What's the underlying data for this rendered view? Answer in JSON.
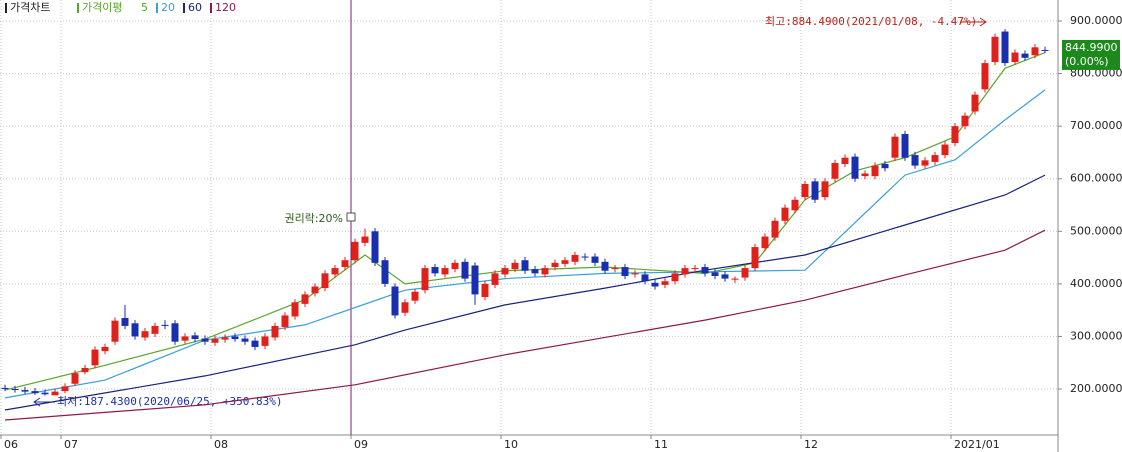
{
  "chart_data": {
    "type": "candlestick",
    "legend": {
      "chart": "가격차트",
      "ma": "가격이평"
    },
    "open": [
      202,
      200,
      198,
      196,
      193,
      188,
      196,
      210,
      232,
      245,
      272,
      290,
      335,
      325,
      298,
      305,
      322,
      325,
      292,
      302,
      296,
      288,
      294,
      300,
      296,
      292,
      282,
      298,
      318,
      338,
      362,
      382,
      392,
      418,
      432,
      445,
      478,
      500,
      445,
      395,
      345,
      368,
      388,
      432,
      418,
      428,
      442,
      435,
      375,
      398,
      418,
      428,
      445,
      428,
      418,
      432,
      438,
      442,
      452,
      452,
      442,
      428,
      432,
      418,
      418,
      402,
      398,
      405,
      418,
      428,
      432,
      422,
      418,
      408,
      412,
      430,
      468,
      488,
      520,
      540,
      565,
      595,
      565,
      600,
      628,
      642,
      605,
      605,
      628,
      640,
      685,
      645,
      625,
      632,
      645,
      668,
      700,
      728,
      770,
      822,
      880,
      822,
      838,
      835,
      845
    ],
    "high": [
      208,
      206,
      204,
      202,
      199,
      201,
      211,
      236,
      246,
      281,
      286,
      336,
      360,
      331,
      316,
      326,
      331,
      331,
      306,
      308,
      302,
      301,
      304,
      306,
      302,
      298,
      306,
      326,
      346,
      371,
      386,
      401,
      426,
      436,
      451,
      486,
      505,
      506,
      451,
      401,
      371,
      391,
      436,
      438,
      436,
      446,
      448,
      441,
      406,
      426,
      436,
      446,
      451,
      434,
      436,
      446,
      451,
      461,
      458,
      458,
      448,
      436,
      438,
      426,
      424,
      408,
      411,
      426,
      436,
      436,
      438,
      428,
      424,
      414,
      436,
      476,
      496,
      526,
      551,
      566,
      596,
      601,
      601,
      636,
      646,
      648,
      616,
      631,
      634,
      686,
      691,
      651,
      641,
      651,
      671,
      706,
      726,
      766,
      826,
      876,
      884.49,
      846,
      844,
      856,
      851
    ],
    "low": [
      196,
      193,
      190,
      189,
      187.43,
      188,
      192,
      206,
      228,
      239,
      266,
      284,
      314,
      294,
      292,
      299,
      314,
      284,
      286,
      289,
      284,
      282,
      288,
      290,
      284,
      274,
      276,
      292,
      312,
      332,
      356,
      376,
      386,
      412,
      426,
      439,
      472,
      434,
      394,
      334,
      339,
      362,
      382,
      414,
      412,
      422,
      404,
      360,
      369,
      392,
      412,
      422,
      419,
      414,
      412,
      426,
      432,
      436,
      444,
      434,
      419,
      422,
      409,
      412,
      399,
      389,
      392,
      399,
      412,
      422,
      414,
      409,
      404,
      402,
      406,
      424,
      462,
      482,
      514,
      534,
      559,
      554,
      559,
      594,
      622,
      594,
      599,
      599,
      614,
      634,
      634,
      619,
      619,
      626,
      639,
      662,
      694,
      722,
      764,
      816,
      814,
      816,
      824,
      829,
      839
    ],
    "close": [
      200,
      198,
      195,
      192,
      190,
      195,
      205,
      230,
      240,
      275,
      280,
      330,
      320,
      300,
      310,
      320,
      320,
      290,
      300,
      295,
      290,
      295,
      298,
      295,
      290,
      280,
      300,
      320,
      340,
      365,
      380,
      395,
      420,
      430,
      445,
      480,
      490,
      440,
      400,
      340,
      365,
      385,
      430,
      420,
      430,
      440,
      410,
      380,
      400,
      420,
      430,
      440,
      425,
      420,
      430,
      440,
      445,
      455,
      450,
      440,
      425,
      430,
      415,
      420,
      405,
      395,
      405,
      420,
      430,
      430,
      420,
      415,
      410,
      410,
      430,
      470,
      490,
      520,
      545,
      560,
      590,
      560,
      595,
      630,
      640,
      600,
      610,
      625,
      620,
      680,
      640,
      625,
      635,
      645,
      665,
      700,
      720,
      760,
      820,
      870,
      820,
      840,
      830,
      850,
      844.99
    ],
    "up_color": "#e0201b",
    "down_color": "#1a2fb0",
    "series": [
      {
        "name": "5",
        "color": "#5aa52a",
        "x": [
          0,
          10,
          20,
          30,
          36,
          40,
          50,
          60,
          70,
          75,
          80,
          85,
          90,
          95,
          100,
          104
        ],
        "values": [
          198,
          245,
          295,
          370,
          455,
          400,
          425,
          432,
          420,
          440,
          560,
          615,
          640,
          680,
          810,
          840
        ]
      },
      {
        "name": "20",
        "color": "#3aa0d8",
        "x": [
          0,
          10,
          20,
          30,
          40,
          50,
          60,
          70,
          80,
          90,
          95,
          100,
          104
        ],
        "values": [
          183,
          217,
          293,
          322,
          388,
          410,
          420,
          423,
          426,
          607,
          636,
          712,
          769
        ]
      },
      {
        "name": "60",
        "color": "#1a237e",
        "x": [
          0,
          20,
          35,
          40,
          50,
          60,
          70,
          80,
          90,
          100,
          104
        ],
        "values": [
          160,
          225,
          284,
          312,
          360,
          392,
          426,
          455,
          512,
          569,
          607
        ]
      },
      {
        "name": "120",
        "color": "#8b1a4a",
        "x": [
          0,
          20,
          35,
          50,
          70,
          80,
          90,
          100,
          104
        ],
        "values": [
          141,
          170,
          208,
          265,
          331,
          369,
          417,
          464,
          502
        ]
      }
    ],
    "xlim": [
      -0.5,
      105.3
    ],
    "xticks": [
      {
        "value": 0,
        "label": "06"
      },
      {
        "value": 6,
        "label": "07"
      },
      {
        "value": 21,
        "label": "08"
      },
      {
        "value": 35,
        "label": "09"
      },
      {
        "value": 50,
        "label": "10"
      },
      {
        "value": 65,
        "label": "11"
      },
      {
        "value": 80,
        "label": "12"
      },
      {
        "value": 95,
        "label": "2021/01"
      }
    ],
    "ylim": [
      112.5,
      940
    ],
    "yticks": [
      {
        "value": 200,
        "label": "200.0000"
      },
      {
        "value": 300,
        "label": "300.0000"
      },
      {
        "value": 400,
        "label": "400.0000"
      },
      {
        "value": 500,
        "label": "500.0000"
      },
      {
        "value": 600,
        "label": "600.0000"
      },
      {
        "value": 700,
        "label": "700.0000"
      },
      {
        "value": 800,
        "label": "800.0000"
      },
      {
        "value": 900,
        "label": "900.0000"
      }
    ],
    "grid": true,
    "event": {
      "x": 35,
      "label": "권리락:20%",
      "color": "#7b1f6e"
    },
    "high_note": "최고:884.4900(2021/01/08, -4.47%)",
    "low_note": "최저:187.4300(2020/06/25, +350.83%)",
    "last": {
      "value": 844.99,
      "label": "844.9900",
      "change": "(0.00%)",
      "color": "#1b8a1b"
    }
  }
}
